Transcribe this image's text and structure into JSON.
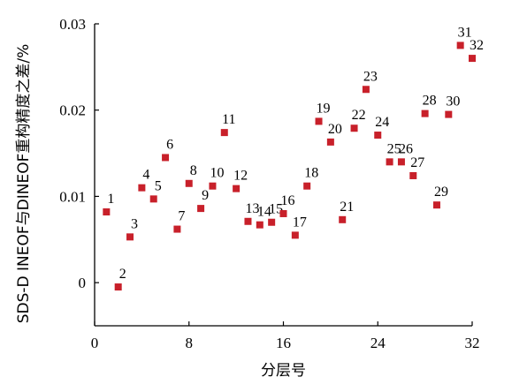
{
  "chart_data": {
    "type": "scatter",
    "title": "",
    "xlabel": "分层号",
    "ylabel": "SDS-D INEOF与DINEOF重构精度之差/%",
    "xlim": [
      0,
      32
    ],
    "ylim": [
      -0.005,
      0.03
    ],
    "xticks": [
      "0",
      "8",
      "16",
      "24",
      "32"
    ],
    "yticks": [
      "0",
      "0.01",
      "0.02",
      "0.03"
    ],
    "xtick_values": [
      0,
      8,
      16,
      24,
      32
    ],
    "ytick_values": [
      0,
      0.01,
      0.02,
      0.03
    ],
    "grid": false,
    "marker_color": "#c8202a",
    "points": [
      {
        "label": "1",
        "x": 1,
        "y": 0.0082
      },
      {
        "label": "2",
        "x": 2,
        "y": -0.0005
      },
      {
        "label": "3",
        "x": 3,
        "y": 0.0053
      },
      {
        "label": "4",
        "x": 4,
        "y": 0.011
      },
      {
        "label": "5",
        "x": 5,
        "y": 0.0097
      },
      {
        "label": "6",
        "x": 6,
        "y": 0.0145
      },
      {
        "label": "7",
        "x": 7,
        "y": 0.0062
      },
      {
        "label": "8",
        "x": 8,
        "y": 0.0115
      },
      {
        "label": "9",
        "x": 9,
        "y": 0.0086
      },
      {
        "label": "10",
        "x": 10,
        "y": 0.0112
      },
      {
        "label": "11",
        "x": 11,
        "y": 0.0174
      },
      {
        "label": "12",
        "x": 12,
        "y": 0.0109
      },
      {
        "label": "13",
        "x": 13,
        "y": 0.0071
      },
      {
        "label": "14",
        "x": 14,
        "y": 0.0067
      },
      {
        "label": "15",
        "x": 15,
        "y": 0.007
      },
      {
        "label": "16",
        "x": 16,
        "y": 0.008
      },
      {
        "label": "17",
        "x": 17,
        "y": 0.0055
      },
      {
        "label": "18",
        "x": 18,
        "y": 0.0112
      },
      {
        "label": "19",
        "x": 19,
        "y": 0.0187
      },
      {
        "label": "20",
        "x": 20,
        "y": 0.0163
      },
      {
        "label": "21",
        "x": 21,
        "y": 0.0073
      },
      {
        "label": "22",
        "x": 22,
        "y": 0.0179
      },
      {
        "label": "23",
        "x": 23,
        "y": 0.0224
      },
      {
        "label": "24",
        "x": 24,
        "y": 0.0171
      },
      {
        "label": "25",
        "x": 25,
        "y": 0.014
      },
      {
        "label": "26",
        "x": 26,
        "y": 0.014
      },
      {
        "label": "27",
        "x": 27,
        "y": 0.0124
      },
      {
        "label": "28",
        "x": 28,
        "y": 0.0196
      },
      {
        "label": "29",
        "x": 29,
        "y": 0.009
      },
      {
        "label": "30",
        "x": 30,
        "y": 0.0195
      },
      {
        "label": "31",
        "x": 31,
        "y": 0.0275
      },
      {
        "label": "32",
        "x": 32,
        "y": 0.026
      }
    ]
  }
}
